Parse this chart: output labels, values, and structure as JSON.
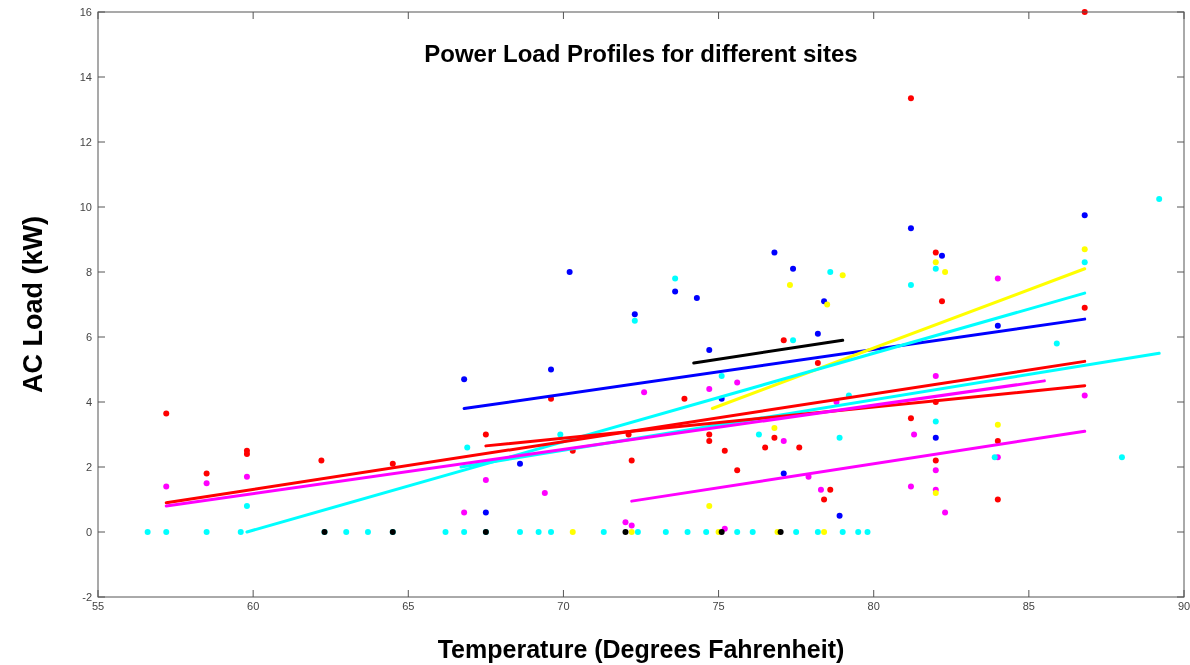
{
  "chart_data": {
    "type": "scatter",
    "title": "Power Load Profiles for different sites",
    "xlabel": "Temperature (Degrees Fahrenheit)",
    "ylabel": "AC Load (kW)",
    "xlim": [
      55,
      90
    ],
    "xticks": [
      55,
      60,
      65,
      70,
      75,
      80,
      85,
      90
    ],
    "ylim": [
      -2,
      16
    ],
    "yticks": [
      -2,
      0,
      2,
      4,
      6,
      8,
      10,
      12,
      14,
      16
    ],
    "marker": "circle",
    "series": [
      {
        "color": "#ff0000",
        "x": [
          57.2,
          58.5,
          59.8,
          59.8,
          62.2,
          64.5,
          67.5,
          69.6,
          70.3,
          72.1,
          72.2,
          73.9,
          74.7,
          74.7,
          75.2,
          75.6,
          76.5,
          77.1,
          77.6,
          78.2,
          78.6,
          81.2,
          81.2,
          82,
          82,
          82.2,
          82,
          84,
          84,
          86.8,
          86.8,
          76.8,
          78.4
        ],
        "values": [
          3.65,
          1.8,
          2.5,
          2.4,
          2.2,
          2.1,
          3,
          4.1,
          2.5,
          3,
          2.2,
          4.1,
          3,
          2.8,
          2.5,
          1.9,
          2.6,
          5.9,
          2.6,
          5.2,
          1.3,
          13.35,
          3.5,
          8.6,
          4,
          7.1,
          2.2,
          1,
          2.8,
          16,
          6.9,
          2.9,
          1
        ]
      },
      {
        "color": "#ff00ff",
        "x": [
          57.2,
          58.5,
          59.8,
          66.8,
          67.5,
          69.4,
          72.2,
          72.6,
          74.7,
          75.2,
          75.6,
          77.1,
          78.3,
          78.8,
          81.3,
          81.2,
          82,
          82,
          82,
          82.3,
          84,
          84,
          86.8,
          72,
          77.9
        ],
        "values": [
          1.4,
          1.5,
          1.7,
          0.6,
          1.6,
          1.2,
          0.2,
          4.3,
          4.4,
          0.1,
          4.6,
          2.8,
          1.3,
          4,
          3,
          1.4,
          4.8,
          1.9,
          1.3,
          0.6,
          7.8,
          2.3,
          4.2,
          0.3,
          1.7
        ]
      },
      {
        "color": "#0000ff",
        "x": [
          66.8,
          67.5,
          68.6,
          69.6,
          70.2,
          73.6,
          74.3,
          74.7,
          75.1,
          76.8,
          77.4,
          77.1,
          78.2,
          78.4,
          78.9,
          81.2,
          82.2,
          82,
          84,
          86.8,
          72.3
        ],
        "values": [
          4.7,
          0.6,
          2.1,
          5,
          8,
          7.4,
          7.2,
          5.6,
          4.1,
          8.6,
          8.1,
          1.8,
          6.1,
          7.1,
          0.5,
          9.35,
          8.5,
          2.9,
          6.35,
          9.75,
          6.7
        ]
      },
      {
        "color": "#00ffff",
        "x": [
          56.6,
          57.2,
          58.5,
          59.6,
          62.3,
          63,
          63.7,
          64.5,
          66.2,
          66.8,
          67.5,
          68.6,
          69.2,
          69.6,
          71.3,
          72.4,
          73.3,
          74,
          74.6,
          75.6,
          76.1,
          77.5,
          78.2,
          79,
          79.5,
          79.8,
          59.8,
          66.9,
          69.9,
          72.3,
          73.6,
          75.1,
          77.4,
          78.6,
          79.2,
          78.9,
          81.2,
          82,
          82,
          83.9,
          85.9,
          88,
          89.2,
          86.8,
          76.3
        ],
        "values": [
          0,
          0,
          0,
          0,
          0,
          0,
          0,
          0,
          0,
          0,
          0,
          0,
          0,
          0,
          0,
          0,
          0,
          0,
          0,
          0,
          0,
          0,
          0,
          0,
          0,
          0,
          0.8,
          2.6,
          3,
          6.5,
          7.8,
          4.8,
          5.9,
          8,
          4.2,
          2.9,
          7.6,
          8.1,
          3.4,
          2.3,
          5.8,
          2.3,
          10.25,
          8.3,
          3
        ]
      },
      {
        "color": "#ffff00",
        "x": [
          74.7,
          77.3,
          78.5,
          79,
          82,
          82.3,
          84,
          82,
          86.8,
          76.8,
          70.3,
          72.2,
          75,
          76.9,
          78.4
        ],
        "values": [
          0.8,
          7.6,
          7,
          7.9,
          8.3,
          8,
          3.3,
          1.2,
          8.7,
          3.2,
          0,
          0,
          0,
          0,
          0
        ]
      },
      {
        "color": "#000000",
        "x": [
          62.3,
          64.5,
          67.5,
          72,
          75.1,
          77
        ],
        "values": [
          0,
          0,
          0,
          0,
          0,
          0
        ]
      },
      {
        "type": "line",
        "marker": "none",
        "color": "#000000",
        "x": [
          74.2,
          79
        ],
        "values": [
          5.2,
          5.9
        ]
      },
      {
        "type": "line",
        "marker": "none",
        "color": "#0000ff",
        "x": [
          66.8,
          86.8
        ],
        "values": [
          3.8,
          6.55
        ]
      },
      {
        "type": "line",
        "marker": "none",
        "color": "#ffff00",
        "x": [
          74.8,
          86.8
        ],
        "values": [
          3.8,
          8.1
        ]
      },
      {
        "type": "line",
        "marker": "none",
        "color": "#00ffff",
        "x": [
          59.8,
          86.8
        ],
        "values": [
          0,
          7.35
        ]
      },
      {
        "type": "line",
        "marker": "none",
        "color": "#00ffff",
        "x": [
          66.7,
          89.2
        ],
        "values": [
          2,
          5.5
        ]
      },
      {
        "type": "line",
        "marker": "none",
        "color": "#ff0000",
        "x": [
          57.2,
          86.8
        ],
        "values": [
          0.9,
          5.25
        ]
      },
      {
        "type": "line",
        "marker": "none",
        "color": "#ff0000",
        "x": [
          67.5,
          86.8
        ],
        "values": [
          2.65,
          4.5
        ]
      },
      {
        "type": "line",
        "marker": "none",
        "color": "#ff00ff",
        "x": [
          57.2,
          85.5
        ],
        "values": [
          0.8,
          4.65
        ]
      },
      {
        "type": "line",
        "marker": "none",
        "color": "#ff00ff",
        "x": [
          72.2,
          86.8
        ],
        "values": [
          0.95,
          3.1
        ]
      }
    ]
  }
}
